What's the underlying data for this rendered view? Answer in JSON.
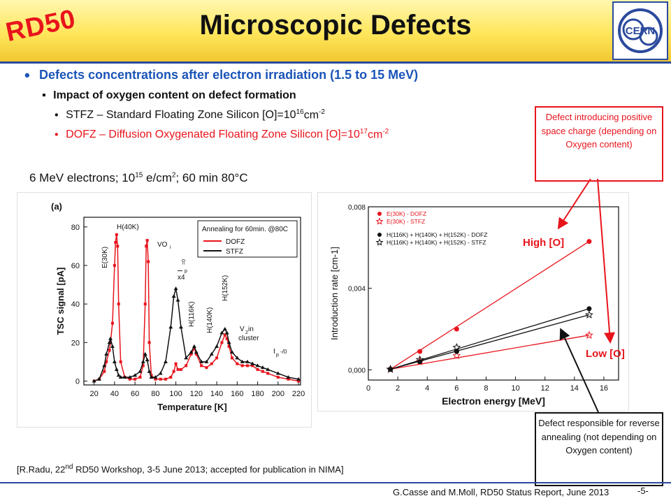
{
  "header": {
    "logo_text": "RD50",
    "title": "Microscopic Defects",
    "cern_logo_text": "CERN"
  },
  "bullets": {
    "main": "Defects concentrations after electron irradiation (1.5 to 15 MeV)",
    "sub": "Impact of oxygen content on defect formation",
    "stfz": {
      "text": "STFZ – Standard Floating Zone Silicon [O]=10",
      "sup": "16",
      "unit": "cm",
      "unit_sup": "-2"
    },
    "dofz": {
      "text": "DOFZ – Diffusion Oxygenated Floating Zone Silicon [O]=10",
      "sup": "17",
      "unit": "cm",
      "unit_sup": "-2"
    }
  },
  "condition": {
    "pre": "6 MeV electrons; 10",
    "sup1": "15",
    "mid": " e/cm",
    "sup2": "2",
    "post": "; 60 min 80°C"
  },
  "callouts": {
    "red": "Defect introducing positive space charge (depending on Oxygen content)",
    "high_o": "High [O]",
    "low_o": "Low [O]",
    "black": "Defect responsible for reverse annealing (not depending on Oxygen content)"
  },
  "reference": {
    "pre": "[R.Radu, 22",
    "sup": "nd",
    "post": " RD50 Workshop, 3-5 June 2013; accepted for publication in NIMA]"
  },
  "footer": {
    "text": "G.Casse and M.Moll, RD50 Status Report, June 2013",
    "page": "-5-"
  },
  "colors": {
    "accent_red": "#e8141c",
    "accent_blue": "#1a54b8",
    "header_yellow": "#ffe65a",
    "rule_blue": "#2b4a9e"
  },
  "chart_data": [
    {
      "type": "line",
      "panel_label": "(a)",
      "title": "",
      "xlabel": "Temperature [K]",
      "ylabel": "TSC signal [pA]",
      "xlim": [
        10,
        222
      ],
      "ylim": [
        -2,
        85
      ],
      "xticks": [
        20,
        40,
        60,
        80,
        100,
        120,
        140,
        160,
        180,
        200,
        220
      ],
      "yticks": [
        0,
        20,
        40,
        60,
        80
      ],
      "legend": {
        "title": "Annealing for 60min. @80C",
        "position": "top-right"
      },
      "annotations": [
        "H(40K)",
        "E(30K)",
        "VO",
        "i",
        "I",
        "p",
        "=0",
        "x4",
        "H(116K)",
        "H(140K)",
        "H(152K)",
        "V",
        "2",
        " in",
        "cluster",
        "I",
        "p",
        "-/0"
      ],
      "series": [
        {
          "name": "DOFZ",
          "color": "#e8141c",
          "marker": "square",
          "x": [
            20,
            25,
            30,
            32,
            35,
            36,
            38,
            40,
            41,
            42,
            43,
            44,
            46,
            50,
            55,
            60,
            65,
            68,
            70,
            71,
            72,
            73,
            74,
            76,
            80,
            85,
            90,
            95,
            98,
            100,
            102,
            105,
            110,
            115,
            118,
            120,
            125,
            130,
            135,
            140,
            145,
            148,
            150,
            152,
            155,
            160,
            165,
            170,
            175,
            180,
            185,
            190,
            200,
            210,
            220
          ],
          "y": [
            0,
            1,
            5,
            10,
            16,
            20,
            30,
            60,
            72,
            76,
            70,
            40,
            10,
            2,
            1,
            1,
            2,
            8,
            40,
            70,
            73,
            62,
            20,
            3,
            1,
            1,
            1,
            2,
            5,
            9,
            6,
            6,
            8,
            14,
            17,
            14,
            8,
            7,
            9,
            12,
            20,
            24,
            22,
            18,
            12,
            9,
            8,
            8,
            8,
            6,
            5,
            4,
            2,
            1,
            0
          ]
        },
        {
          "name": "STFZ",
          "color": "#111111",
          "marker": "triangle",
          "x": [
            20,
            25,
            30,
            32,
            35,
            36,
            38,
            40,
            42,
            44,
            46,
            50,
            55,
            60,
            65,
            68,
            70,
            72,
            74,
            76,
            80,
            85,
            90,
            95,
            98,
            100,
            102,
            105,
            110,
            115,
            118,
            120,
            125,
            130,
            135,
            140,
            145,
            148,
            150,
            152,
            155,
            160,
            165,
            170,
            175,
            180,
            185,
            190,
            200,
            210,
            220
          ],
          "y": [
            0,
            1,
            8,
            14,
            20,
            22,
            18,
            10,
            6,
            3,
            2,
            2,
            2,
            3,
            5,
            10,
            14,
            11,
            5,
            2,
            2,
            4,
            10,
            28,
            44,
            48,
            42,
            28,
            12,
            15,
            18,
            15,
            10,
            10,
            14,
            18,
            25,
            27,
            25,
            20,
            15,
            12,
            10,
            10,
            9,
            8,
            7,
            6,
            4,
            2,
            1
          ]
        }
      ]
    },
    {
      "type": "scatter",
      "title": "",
      "xlabel": "Electron energy [MeV]",
      "ylabel": "Introduction rate [cm-1]",
      "xlim": [
        0,
        17
      ],
      "ylim": [
        -0.0005,
        0.008
      ],
      "xticks": [
        0,
        2,
        4,
        6,
        8,
        10,
        12,
        14,
        16
      ],
      "yticks": [
        0.0,
        0.004,
        0.008
      ],
      "ytick_labels": [
        "0,000",
        "0,004",
        "0,008"
      ],
      "legend": {
        "position": "top-left"
      },
      "series": [
        {
          "name": "E(30K) - DOFZ",
          "color": "#e8141c",
          "marker": "circle",
          "fill": true,
          "x": [
            1.5,
            3.5,
            6,
            15
          ],
          "y": [
            3e-05,
            0.0009,
            0.002,
            0.0063
          ]
        },
        {
          "name": "E(30K) - STFZ",
          "color": "#e8141c",
          "marker": "star",
          "fill": false,
          "x": [
            1.5,
            3.5,
            6,
            15
          ],
          "y": [
            3e-05,
            0.0004,
            0.0007,
            0.0017
          ]
        },
        {
          "name": "H(116K) + H(140K) + H(152K) - DOFZ",
          "color": "#111111",
          "marker": "circle",
          "fill": true,
          "x": [
            1.5,
            3.5,
            6,
            15
          ],
          "y": [
            3e-05,
            0.0004,
            0.0009,
            0.003
          ]
        },
        {
          "name": "H(116K) + H(140K) + H(152K) - STFZ",
          "color": "#111111",
          "marker": "star",
          "fill": false,
          "x": [
            1.5,
            3.5,
            6,
            15
          ],
          "y": [
            3e-05,
            0.0005,
            0.0011,
            0.0027
          ]
        }
      ]
    }
  ]
}
